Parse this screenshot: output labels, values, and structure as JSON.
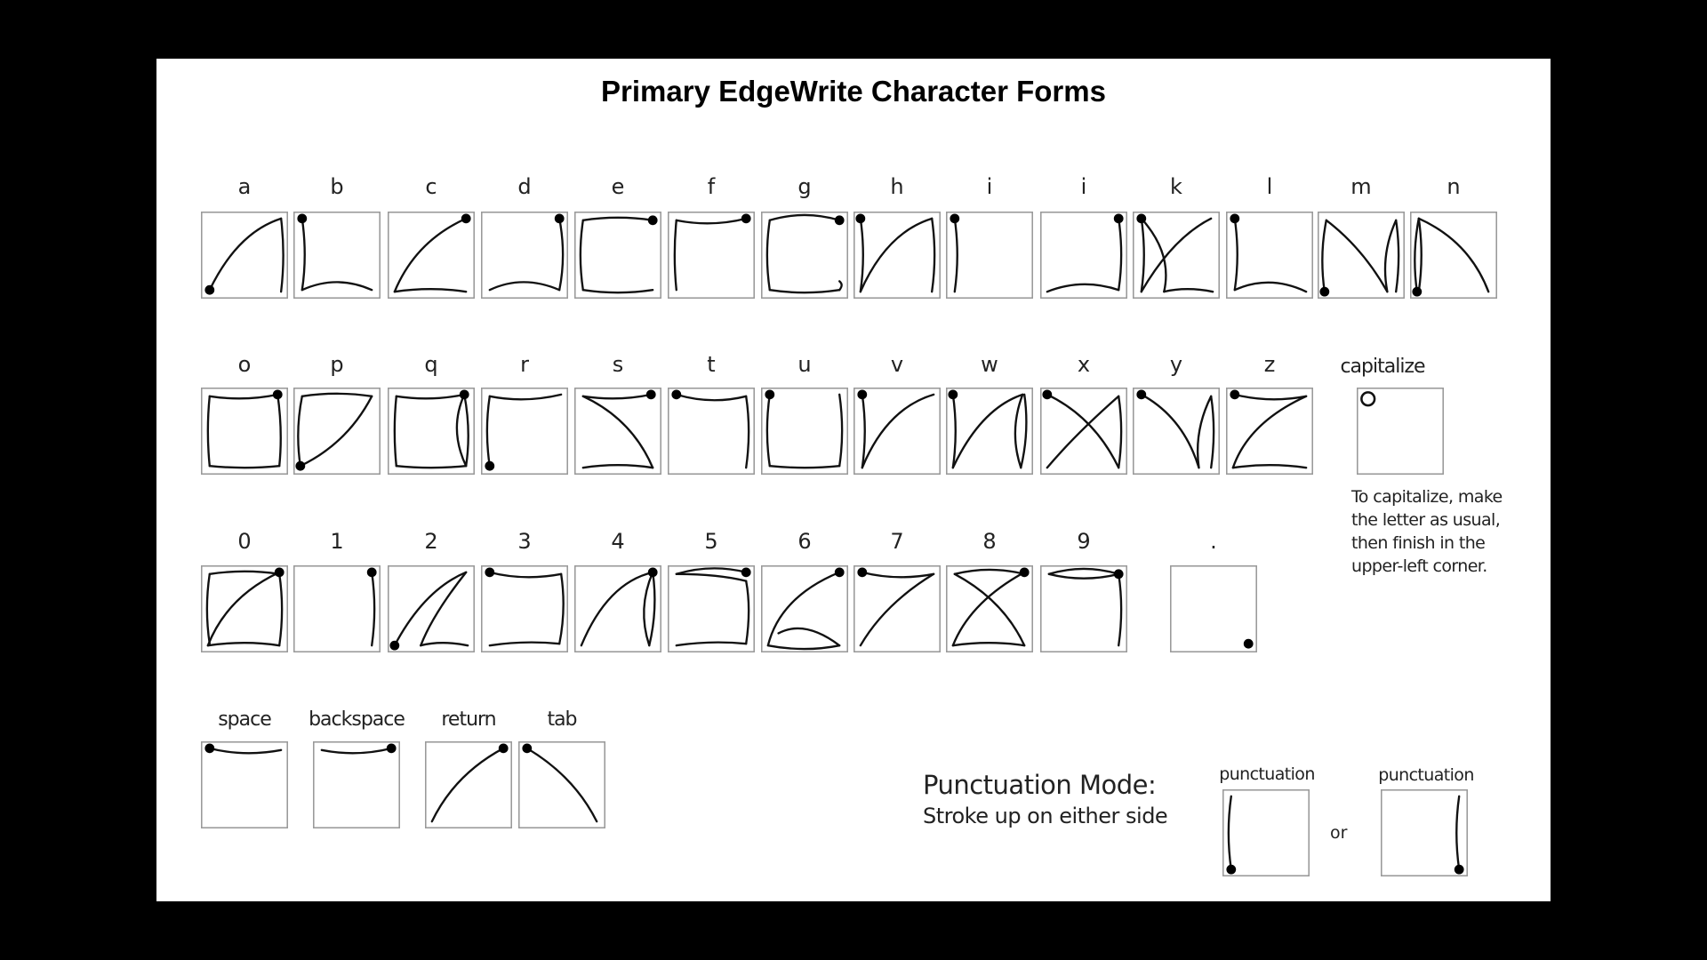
{
  "title": "Primary EdgeWrite Character Forms",
  "characters": [
    {
      "label": "a"
    },
    {
      "label": "b"
    },
    {
      "label": "c"
    },
    {
      "label": "d"
    },
    {
      "label": "e"
    },
    {
      "label": "f"
    },
    {
      "label": "g"
    },
    {
      "label": "h"
    },
    {
      "label": "i"
    },
    {
      "label": "i"
    },
    {
      "label": "k"
    },
    {
      "label": "l"
    },
    {
      "label": "m"
    },
    {
      "label": "n"
    },
    {
      "label": "o"
    },
    {
      "label": "p"
    },
    {
      "label": "q"
    },
    {
      "label": "r"
    },
    {
      "label": "s"
    },
    {
      "label": "t"
    },
    {
      "label": "u"
    },
    {
      "label": "v"
    },
    {
      "label": "w"
    },
    {
      "label": "x"
    },
    {
      "label": "y"
    },
    {
      "label": "z"
    },
    {
      "label": "0"
    },
    {
      "label": "1"
    },
    {
      "label": "2"
    },
    {
      "label": "3"
    },
    {
      "label": "4"
    },
    {
      "label": "5"
    },
    {
      "label": "6"
    },
    {
      "label": "7"
    },
    {
      "label": "8"
    },
    {
      "label": "9"
    },
    {
      "label": "."
    }
  ],
  "capitalize": {
    "label": "capitalize",
    "note": [
      "To capitalize, make",
      "the letter as usual,",
      "then finish in the",
      "upper-left corner."
    ]
  },
  "controls": [
    {
      "label": "space"
    },
    {
      "label": "backspace"
    },
    {
      "label": "return"
    },
    {
      "label": "tab"
    }
  ],
  "punctuation": {
    "title": "Punctuation Mode:",
    "subtitle": "Stroke up on either side",
    "left_label": "punctuation",
    "right_label": "punctuation",
    "or": "or"
  }
}
